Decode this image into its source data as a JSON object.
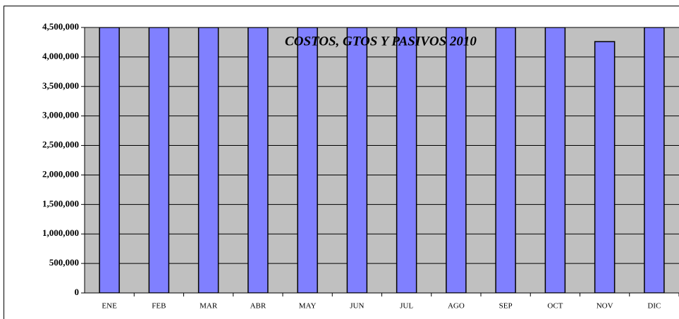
{
  "chart_data": {
    "type": "bar",
    "title": "COSTOS, GTOS Y PASIVOS 2010",
    "categories": [
      "ENE",
      "FEB",
      "MAR",
      "ABR",
      "MAY",
      "JUN",
      "JUL",
      "AGO",
      "SEP",
      "OCT",
      "NOV",
      "DIC"
    ],
    "values": [
      4500000,
      4500000,
      4500000,
      4500000,
      4500000,
      4500000,
      4500000,
      4500000,
      4500000,
      4500000,
      4260000,
      4500000
    ],
    "color": "#8080ff",
    "ylim": [
      0,
      4500000
    ],
    "yticks": [
      0,
      {
        "value": 500000,
        "label": "500,000"
      },
      {
        "value": 1000000,
        "label": "1,000,000"
      },
      {
        "value": 1500000,
        "label": "1,500,000"
      },
      {
        "value": 2000000,
        "label": "2,000,000"
      },
      {
        "value": 2500000,
        "label": "2,500,000"
      },
      {
        "value": 3000000,
        "label": "3,000,000"
      },
      {
        "value": 3500000,
        "label": "3,500,000"
      },
      {
        "value": 4000000,
        "label": "4,000,000"
      },
      {
        "value": 4500000,
        "label": "4,500,000"
      }
    ],
    "grid": true
  }
}
